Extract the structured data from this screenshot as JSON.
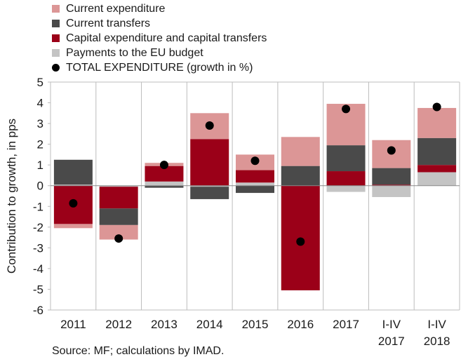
{
  "chart_data": {
    "type": "bar",
    "stacked": true,
    "title": "",
    "xlabel": "",
    "ylabel": "Contribution to growth, in pps",
    "ylim": [
      -6,
      5
    ],
    "yticks": [
      5,
      4,
      3,
      2,
      1,
      0,
      -1,
      -2,
      -3,
      -4,
      -5,
      -6
    ],
    "categories": [
      [
        "2011"
      ],
      [
        "2012"
      ],
      [
        "2013"
      ],
      [
        "2014"
      ],
      [
        "2015"
      ],
      [
        "2016"
      ],
      [
        "2017"
      ],
      [
        "I-IV",
        "2017"
      ],
      [
        "I-IV",
        "2018"
      ]
    ],
    "series": [
      {
        "name": "Current expenditure",
        "color": "#dc9696",
        "values": [
          -0.2,
          -0.7,
          0.15,
          1.25,
          0.75,
          1.4,
          2.0,
          1.35,
          1.45
        ]
      },
      {
        "name": "Current transfers",
        "color": "#4a4a4a",
        "values": [
          1.2,
          -0.8,
          -0.1,
          -0.6,
          -0.35,
          0.95,
          1.25,
          0.8,
          1.3
        ]
      },
      {
        "name": "Capital expenditure and capital transfers",
        "color": "#9b0018",
        "values": [
          -1.85,
          -1.05,
          0.75,
          2.25,
          0.6,
          -5.05,
          0.7,
          0.05,
          0.35
        ]
      },
      {
        "name": "Payments to the EU budget",
        "color": "#c4c4c4",
        "values": [
          0.05,
          -0.05,
          0.2,
          -0.05,
          0.15,
          0.0,
          -0.3,
          -0.55,
          0.65
        ]
      }
    ],
    "total": {
      "name": "TOTAL EXPENDITURE (growth in %)",
      "color": "#000000",
      "values": [
        -0.85,
        -2.55,
        1.0,
        2.9,
        1.2,
        -2.7,
        3.7,
        1.7,
        3.8
      ]
    },
    "grid": "vertical",
    "legend_position": "top-left"
  },
  "source": "Source: MF; calculations by IMAD."
}
